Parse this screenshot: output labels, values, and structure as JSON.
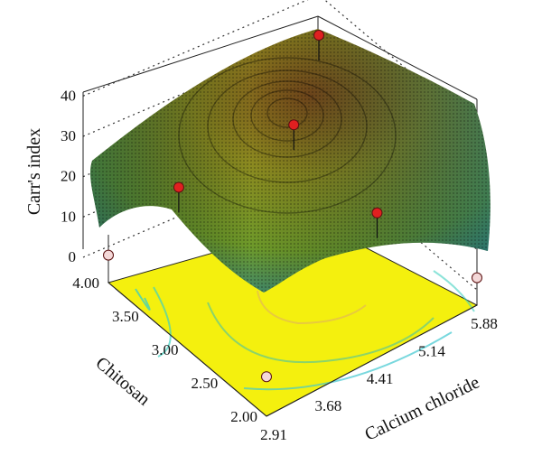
{
  "chart_data": {
    "type": "surface3d",
    "title": "",
    "zlabel": "Carr's index",
    "xlabel": "Calcium chloride",
    "ylabel": "Chitosan",
    "x_ticks": [
      "2.91",
      "3.68",
      "4.41",
      "5.14",
      "5.88"
    ],
    "y_ticks": [
      "2.00",
      "2.50",
      "3.00",
      "3.50",
      "4.00"
    ],
    "z_ticks": [
      "0",
      "10",
      "20",
      "30",
      "40"
    ],
    "xlim": [
      2.91,
      5.88
    ],
    "ylim": [
      2.0,
      4.0
    ],
    "zlim": [
      0,
      40
    ],
    "peak": {
      "x": 4.6,
      "y": 3.4,
      "z": 33
    },
    "design_points": [
      {
        "x": 2.91,
        "y": 4.0,
        "z": 3,
        "above_surface": false
      },
      {
        "x": 2.91,
        "y": 2.0,
        "z": 6,
        "above_surface": false
      },
      {
        "x": 5.88,
        "y": 2.0,
        "z": 3,
        "above_surface": false
      },
      {
        "x": 4.41,
        "y": 3.0,
        "z": 38,
        "above_surface": true
      },
      {
        "x": 5.88,
        "y": 4.0,
        "z": 30,
        "above_surface": true
      },
      {
        "x": 3.68,
        "y": 3.8,
        "z": 16,
        "above_surface": true
      },
      {
        "x": 5.14,
        "y": 2.6,
        "z": 16,
        "above_surface": true
      }
    ],
    "colors": {
      "floor": "#f4f00e",
      "surface_low": "#2b8a8e",
      "surface_mid": "#8a9a1a",
      "surface_high": "#8a5a1e",
      "point_above": "#e02020",
      "point_below": "#f4d8d8"
    }
  }
}
